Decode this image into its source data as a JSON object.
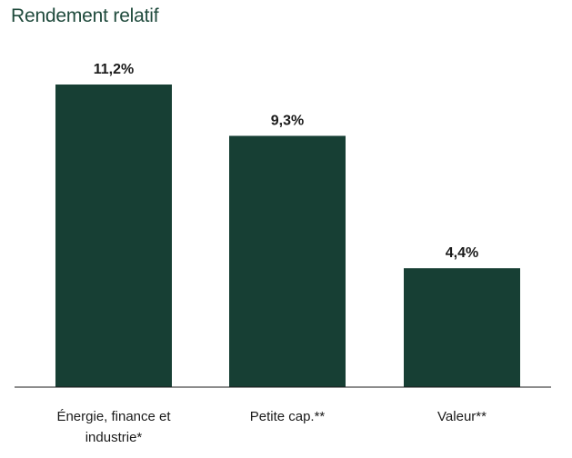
{
  "chart_data": {
    "type": "bar",
    "title": "Rendement relatif",
    "categories": [
      [
        "Énergie, finance et",
        "industrie*"
      ],
      [
        "Petite cap.**"
      ],
      [
        "Valeur**"
      ]
    ],
    "values": [
      11.2,
      9.3,
      4.4
    ],
    "value_labels": [
      "11,2%",
      "9,3%",
      "4,4%"
    ],
    "ylim": [
      0,
      11.2
    ],
    "bar_color": "#173f34",
    "axis_color": "#1a1a1a",
    "xlabel": "",
    "ylabel": "",
    "grid": false,
    "legend": "none"
  }
}
